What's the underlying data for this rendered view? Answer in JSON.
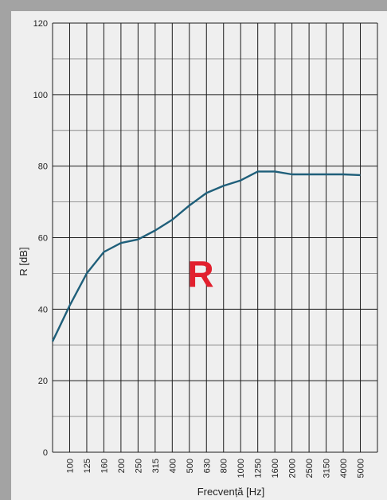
{
  "chart_data": {
    "type": "line",
    "title": "",
    "xlabel": "Frecvență [Hz]",
    "ylabel": "R [dB]",
    "annotation": "R",
    "ylim": [
      0,
      120
    ],
    "y_ticks": [
      0,
      20,
      40,
      60,
      80,
      100,
      120
    ],
    "grid": true,
    "categories": [
      "100",
      "125",
      "160",
      "200",
      "250",
      "315",
      "400",
      "500",
      "630",
      "800",
      "1000",
      "1250",
      "1600",
      "2000",
      "2500",
      "3150",
      "4000",
      "5000"
    ],
    "series": [
      {
        "x": [
          "80",
          "100",
          "125",
          "160",
          "200",
          "250",
          "315",
          "400",
          "500",
          "630",
          "800",
          "1000",
          "1250",
          "1600",
          "2000",
          "2500",
          "3150",
          "4000",
          "5000"
        ],
        "values": [
          31,
          41,
          50,
          56,
          58.5,
          59.5,
          62,
          65,
          69,
          72.5,
          74.5,
          76,
          78.5,
          78.5,
          77.7,
          77.7,
          77.7,
          77.7,
          77.5
        ]
      }
    ],
    "colors": {
      "line": "#1f5f7a",
      "annotation": "#e2202e",
      "grid": "#222222",
      "background": "#efefef"
    }
  }
}
